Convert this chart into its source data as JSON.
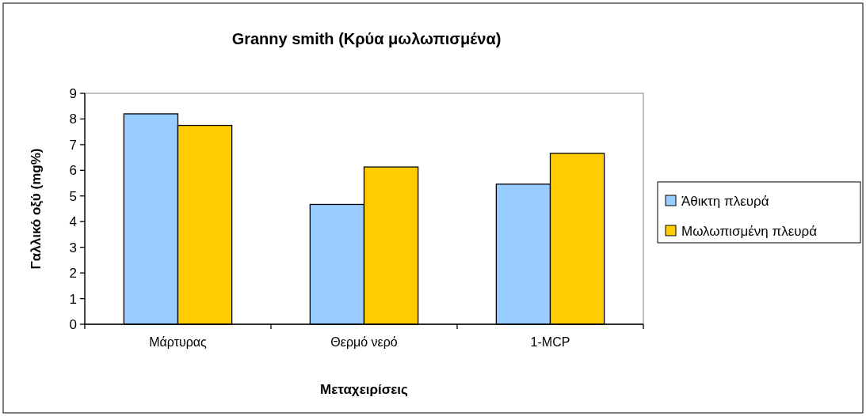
{
  "chart_data": {
    "type": "bar",
    "title": "Granny smith (Κρύα μωλωπισμένα)",
    "xlabel": "Μεταχειρίσεις",
    "ylabel": "Γαλλικό οξύ (mg%)",
    "categories": [
      "Μάρτυρας",
      "Θερμό νερό",
      "1-MCP"
    ],
    "series": [
      {
        "name": "Άθικτη πλευρά",
        "color": "#99ccff",
        "values": [
          8.2,
          4.67,
          5.46
        ]
      },
      {
        "name": "Μωλωπισμένη πλευρά",
        "color": "#ffcc00",
        "values": [
          7.75,
          6.13,
          6.66
        ]
      }
    ],
    "ylim": [
      0,
      9
    ],
    "yticks": [
      0,
      1,
      2,
      3,
      4,
      5,
      6,
      7,
      8,
      9
    ],
    "grid": false,
    "legend": "right"
  }
}
